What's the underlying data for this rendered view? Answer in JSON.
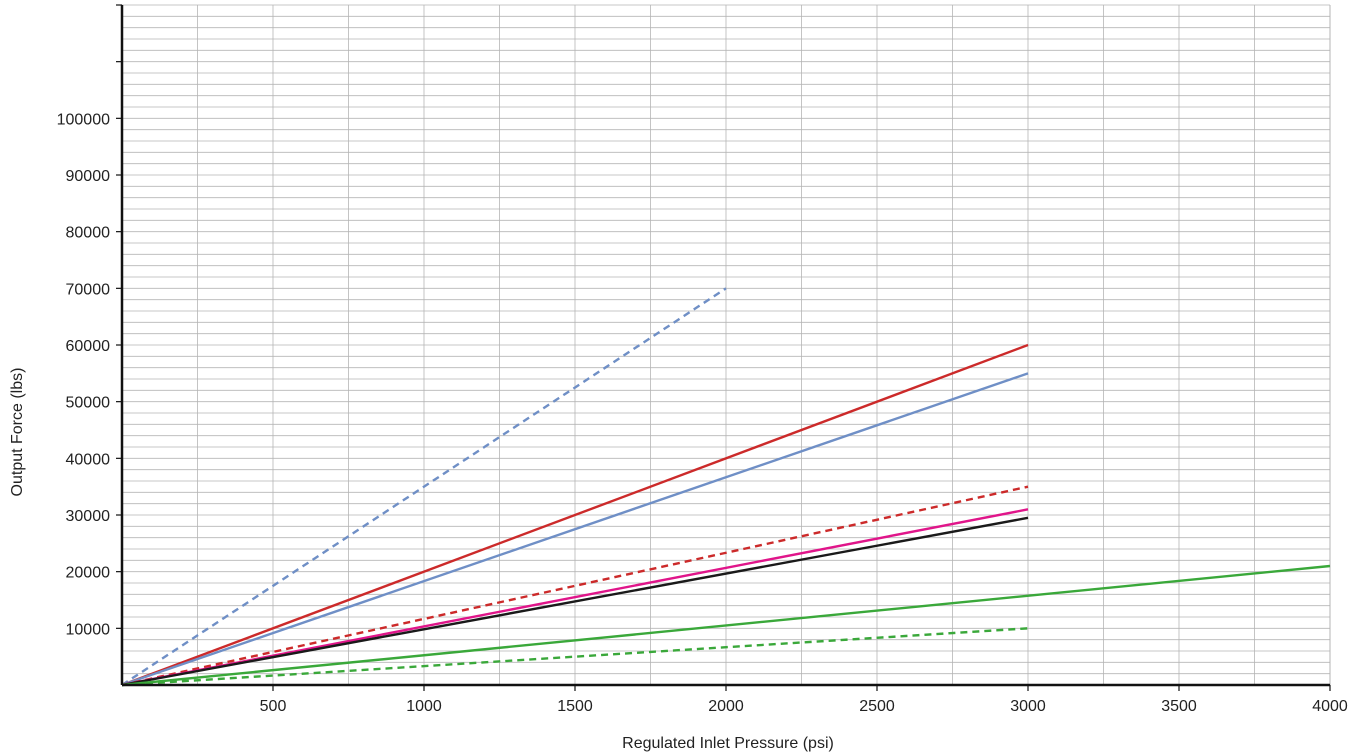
{
  "chart_data": {
    "type": "line",
    "title": "",
    "xlabel": "Regulated Inlet Pressure (psi)",
    "ylabel": "Output Force (lbs)",
    "xlim": [
      0,
      4000
    ],
    "ylim": [
      0,
      120000
    ],
    "x_ticks": [
      500,
      1000,
      1500,
      2000,
      2500,
      3000,
      3500,
      4000
    ],
    "y_ticks": [
      10000,
      20000,
      30000,
      40000,
      50000,
      60000,
      70000,
      80000,
      90000,
      100000
    ],
    "grid": true,
    "legend": "none",
    "series": [
      {
        "color": "#6f8fc6",
        "dashed": true,
        "x": [
          0,
          2000
        ],
        "y": [
          0,
          70000
        ]
      },
      {
        "color": "#cc2a2a",
        "dashed": false,
        "x": [
          0,
          3000
        ],
        "y": [
          0,
          60000
        ]
      },
      {
        "color": "#6f8fc6",
        "dashed": false,
        "x": [
          0,
          3000
        ],
        "y": [
          0,
          55000
        ]
      },
      {
        "color": "#cc2a2a",
        "dashed": true,
        "x": [
          0,
          3000
        ],
        "y": [
          0,
          35000
        ]
      },
      {
        "color": "#e0158a",
        "dashed": false,
        "x": [
          0,
          3000
        ],
        "y": [
          0,
          31000
        ]
      },
      {
        "color": "#1a1a1a",
        "dashed": false,
        "x": [
          0,
          3000
        ],
        "y": [
          0,
          29500
        ]
      },
      {
        "color": "#3aa83a",
        "dashed": false,
        "x": [
          0,
          4000
        ],
        "y": [
          0,
          21000
        ]
      },
      {
        "color": "#3aa83a",
        "dashed": true,
        "x": [
          0,
          3000
        ],
        "y": [
          0,
          10000
        ]
      }
    ]
  }
}
